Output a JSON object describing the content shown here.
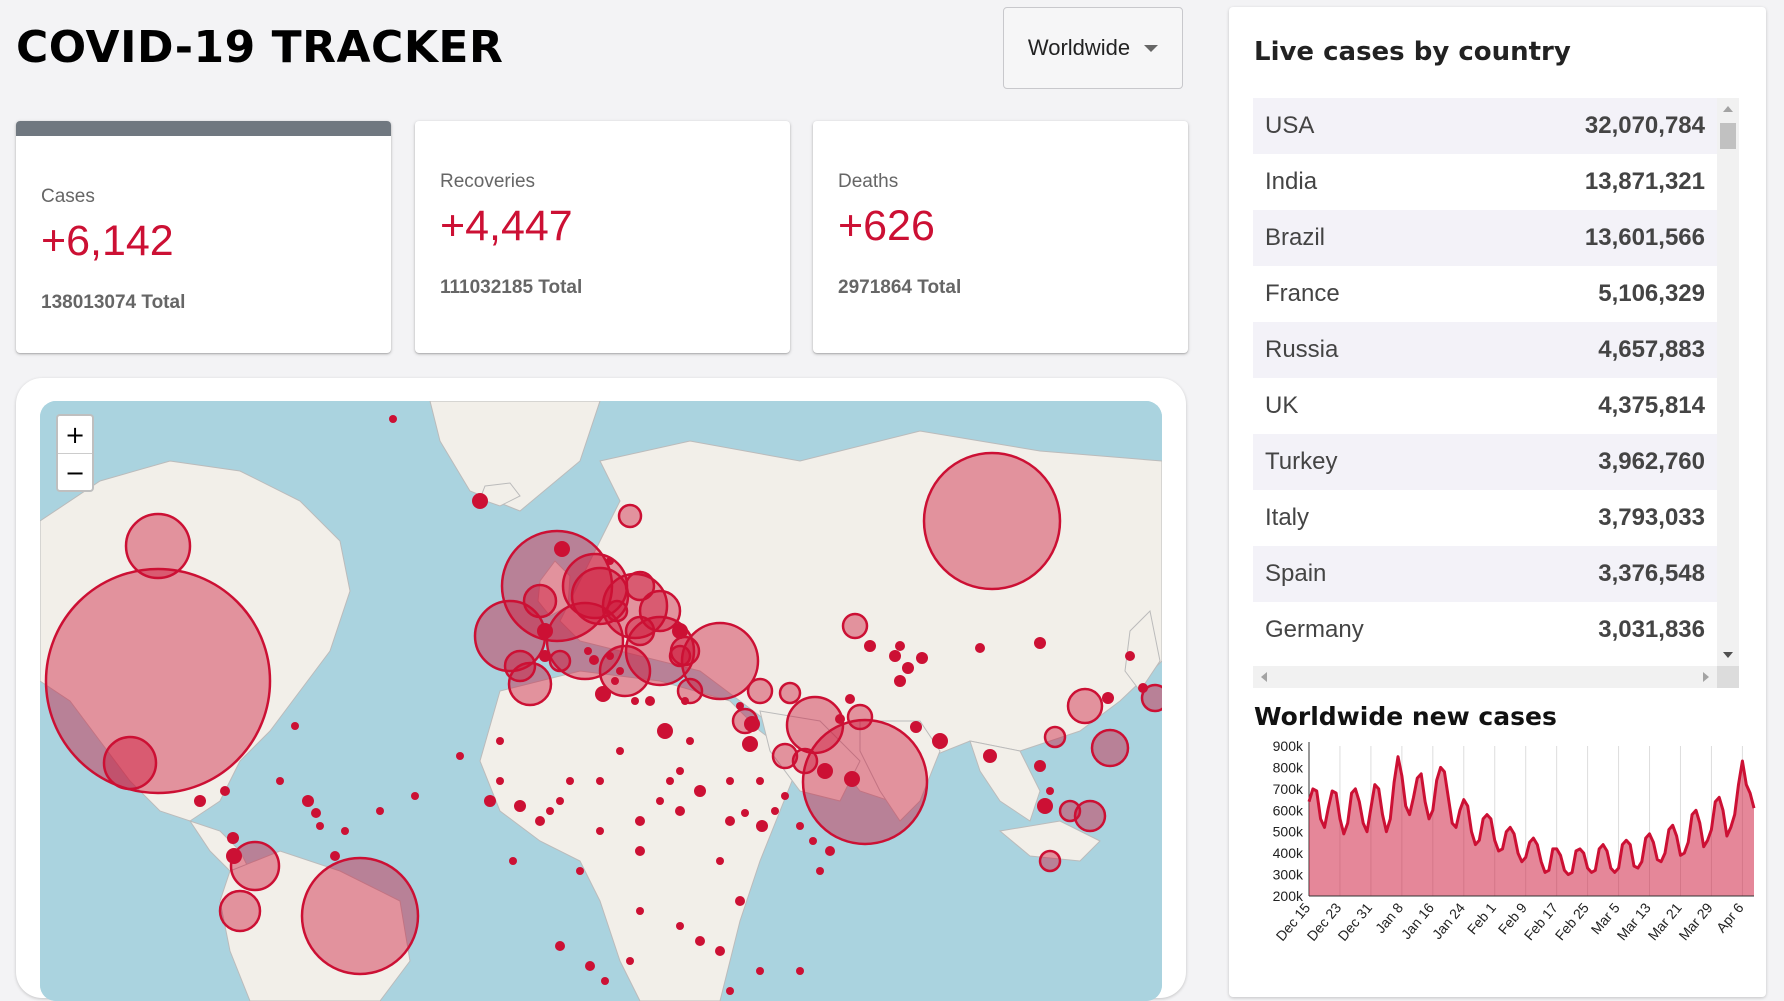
{
  "header": {
    "title": "COVID-19 TRACKER",
    "country_select": {
      "selected": "Worldwide"
    }
  },
  "stats": [
    {
      "label": "Cases",
      "value": "+6,142",
      "total": "138013074 Total",
      "active": true
    },
    {
      "label": "Recoveries",
      "value": "+4,447",
      "total": "111032185 Total",
      "active": false
    },
    {
      "label": "Deaths",
      "value": "+626",
      "total": "2971864 Total",
      "active": false
    }
  ],
  "map": {
    "zoom_in": "+",
    "zoom_out": "−",
    "colors": {
      "water": "#aad3df",
      "land": "#f2efe9",
      "border": "#bbbbbb",
      "circle_fill": "#cc1034",
      "circle_stroke": "#cc1034"
    }
  },
  "sidebar": {
    "title": "Live cases by country",
    "countries": [
      {
        "name": "USA",
        "cases": "32,070,784"
      },
      {
        "name": "India",
        "cases": "13,871,321"
      },
      {
        "name": "Brazil",
        "cases": "13,601,566"
      },
      {
        "name": "France",
        "cases": "5,106,329"
      },
      {
        "name": "Russia",
        "cases": "4,657,883"
      },
      {
        "name": "UK",
        "cases": "4,375,814"
      },
      {
        "name": "Turkey",
        "cases": "3,962,760"
      },
      {
        "name": "Italy",
        "cases": "3,793,033"
      },
      {
        "name": "Spain",
        "cases": "3,376,548"
      },
      {
        "name": "Germany",
        "cases": "3,031,836"
      }
    ],
    "chart_title": "Worldwide new cases"
  },
  "chart_data": {
    "type": "area",
    "title": "Worldwide new cases",
    "y_ticks": [
      "900k",
      "800k",
      "700k",
      "600k",
      "500k",
      "400k",
      "300k",
      "200k"
    ],
    "ylim": [
      200000,
      900000
    ],
    "x_ticks": [
      "Dec 15",
      "Dec 23",
      "Dec 31",
      "Jan 8",
      "Jan 16",
      "Jan 24",
      "Feb 1",
      "Feb 9",
      "Feb 17",
      "Feb 25",
      "Mar 5",
      "Mar 13",
      "Mar 21",
      "Mar 29",
      "Apr 6"
    ],
    "x_tick_index": [
      0,
      8,
      16,
      24,
      32,
      40,
      48,
      56,
      64,
      72,
      80,
      88,
      96,
      104,
      112
    ],
    "color": "#cc1034",
    "values": [
      640000,
      700000,
      690000,
      560000,
      520000,
      610000,
      690000,
      680000,
      560000,
      490000,
      540000,
      680000,
      700000,
      640000,
      540000,
      500000,
      610000,
      720000,
      700000,
      580000,
      500000,
      560000,
      730000,
      850000,
      760000,
      620000,
      580000,
      660000,
      750000,
      770000,
      640000,
      560000,
      600000,
      740000,
      800000,
      780000,
      660000,
      540000,
      520000,
      600000,
      650000,
      620000,
      500000,
      440000,
      460000,
      560000,
      580000,
      560000,
      460000,
      410000,
      420000,
      500000,
      520000,
      490000,
      400000,
      360000,
      380000,
      450000,
      470000,
      440000,
      360000,
      310000,
      320000,
      420000,
      420000,
      390000,
      320000,
      300000,
      310000,
      410000,
      420000,
      400000,
      330000,
      310000,
      320000,
      420000,
      440000,
      410000,
      330000,
      310000,
      330000,
      440000,
      460000,
      440000,
      340000,
      330000,
      360000,
      470000,
      490000,
      450000,
      370000,
      360000,
      400000,
      510000,
      530000,
      480000,
      390000,
      400000,
      450000,
      580000,
      600000,
      540000,
      430000,
      460000,
      510000,
      640000,
      660000,
      600000,
      480000,
      520000,
      580000,
      720000,
      830000,
      720000,
      680000,
      610000
    ]
  }
}
